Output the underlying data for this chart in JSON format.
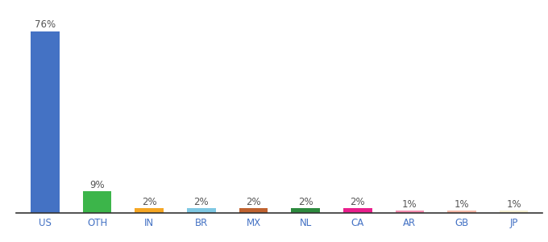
{
  "categories": [
    "US",
    "OTH",
    "IN",
    "BR",
    "MX",
    "NL",
    "CA",
    "AR",
    "GB",
    "JP"
  ],
  "values": [
    76,
    9,
    2,
    2,
    2,
    2,
    2,
    1,
    1,
    1
  ],
  "bar_colors": [
    "#4472c4",
    "#3cb54a",
    "#f5a623",
    "#7ec8e3",
    "#c0622f",
    "#2d8a3e",
    "#e91e8c",
    "#f48fb1",
    "#f4b8a8",
    "#f5f0d0"
  ],
  "labels": [
    "76%",
    "9%",
    "2%",
    "2%",
    "2%",
    "2%",
    "2%",
    "1%",
    "1%",
    "1%"
  ],
  "background_color": "#ffffff",
  "ylim": [
    0,
    82
  ],
  "label_fontsize": 8.5,
  "tick_fontsize": 8.5,
  "bar_width": 0.55
}
